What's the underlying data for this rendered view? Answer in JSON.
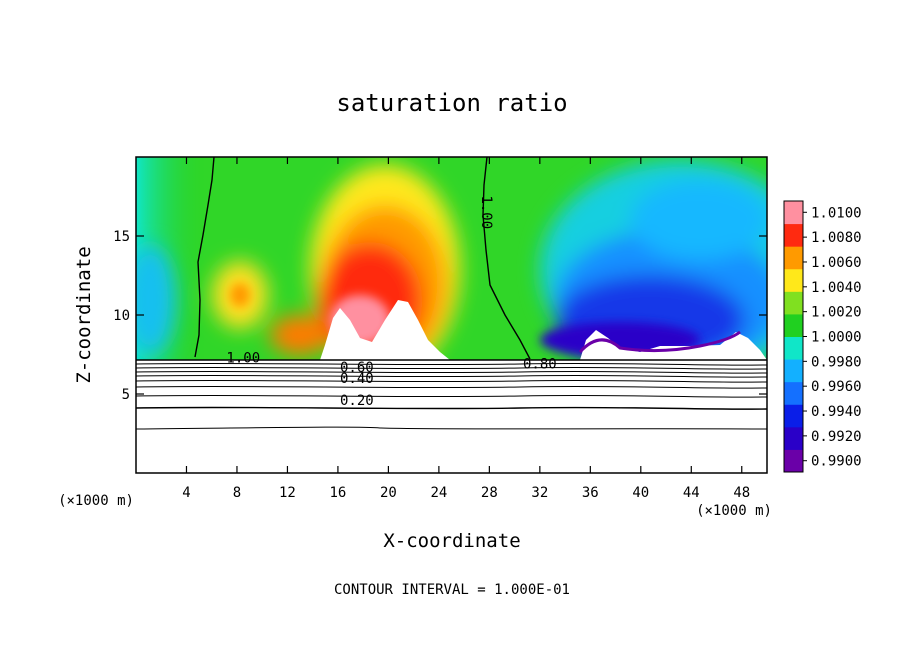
{
  "chart_data": {
    "type": "contour",
    "title": "saturation ratio",
    "xlabel": "X-coordinate",
    "ylabel": "Z-coordinate",
    "x_unit_left": "(×1000 m)",
    "x_unit_right": "(×1000 m)",
    "xlim": [
      0,
      50
    ],
    "ylim": [
      0,
      20
    ],
    "x_ticks": [
      4,
      8,
      12,
      16,
      20,
      24,
      28,
      32,
      36,
      40,
      44,
      48
    ],
    "x_tick_labels": [
      "4",
      "8",
      "12",
      "16",
      "20",
      "24",
      "28",
      "32",
      "36",
      "40",
      "44",
      "48"
    ],
    "y_ticks": [
      5,
      10,
      15
    ],
    "y_tick_labels": [
      "5",
      "10",
      "15"
    ],
    "colorbar": {
      "levels": [
        0.99,
        0.992,
        0.994,
        0.996,
        0.998,
        1.0,
        1.002,
        1.004,
        1.006,
        1.008,
        1.01
      ],
      "labels": [
        "0.9900",
        "0.9920",
        "0.9940",
        "0.9960",
        "0.9980",
        "1.0000",
        "1.0020",
        "1.0040",
        "1.0060",
        "1.0080",
        "1.0100"
      ],
      "colors": [
        "#6a00a8",
        "#2a00c8",
        "#0a1ee8",
        "#1470ff",
        "#13b0ff",
        "#10e6c8",
        "#20d020",
        "#80e020",
        "#ffe81a",
        "#ff9a00",
        "#ff2a10",
        "#ff90a0"
      ]
    },
    "contour_labels": [
      {
        "text": "1.00",
        "x": 27.4,
        "y": 16.5
      },
      {
        "text": "1.00",
        "x": 8.5,
        "y": 7.0
      },
      {
        "text": "0.80",
        "x": 32.0,
        "y": 6.6
      },
      {
        "text": "0.60",
        "x": 17.5,
        "y": 6.4
      },
      {
        "text": "0.40",
        "x": 17.5,
        "y": 5.7
      },
      {
        "text": "0.20",
        "x": 17.5,
        "y": 4.3
      }
    ],
    "footer": "CONTOUR INTERVAL = 1.000E-01"
  }
}
